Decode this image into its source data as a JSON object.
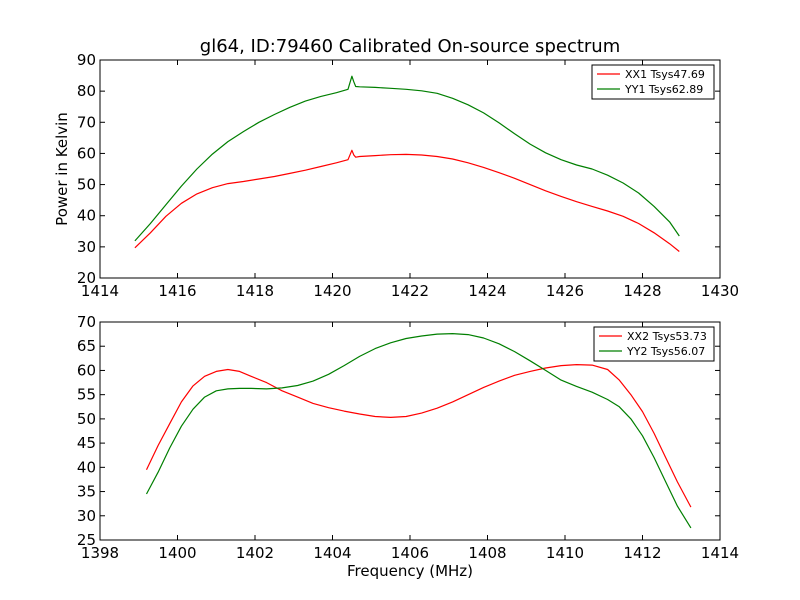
{
  "figure_title": "gl64, ID:79460 Calibrated On-source spectrum",
  "colors": {
    "red": "#ff0000",
    "green": "#007f00"
  },
  "chart_data": [
    {
      "type": "line",
      "title": "gl64, ID:79460 Calibrated On-source spectrum",
      "xlabel": "",
      "ylabel": "Power in Kelvin",
      "xlim": [
        1414,
        1430
      ],
      "ylim": [
        20,
        90
      ],
      "xticks": [
        1414,
        1416,
        1418,
        1420,
        1422,
        1424,
        1426,
        1428,
        1430
      ],
      "yticks": [
        20,
        30,
        40,
        50,
        60,
        70,
        80,
        90
      ],
      "grid": false,
      "legend": "top-right",
      "series": [
        {
          "name": "XX1 Tsys47.69",
          "color": "#ff0000",
          "x": [
            1414.9,
            1415.3,
            1415.7,
            1416.1,
            1416.5,
            1416.9,
            1417.3,
            1417.7,
            1418.1,
            1418.5,
            1418.9,
            1419.3,
            1419.7,
            1420.1,
            1420.4,
            1420.5,
            1420.55,
            1420.6,
            1420.7,
            1421.1,
            1421.5,
            1421.9,
            1422.3,
            1422.7,
            1423.1,
            1423.5,
            1423.9,
            1424.3,
            1424.7,
            1425.1,
            1425.5,
            1425.9,
            1426.3,
            1426.7,
            1427.1,
            1427.5,
            1427.9,
            1428.3,
            1428.7,
            1428.95
          ],
          "y": [
            29.7,
            34.5,
            39.8,
            44.0,
            47.0,
            49.0,
            50.3,
            51.0,
            51.8,
            52.6,
            53.6,
            54.6,
            55.8,
            57.0,
            58.0,
            61.0,
            59.5,
            58.8,
            59.0,
            59.3,
            59.6,
            59.7,
            59.5,
            59.0,
            58.2,
            57.0,
            55.5,
            53.8,
            52.0,
            50.0,
            48.0,
            46.2,
            44.5,
            43.0,
            41.5,
            39.8,
            37.5,
            34.5,
            31.0,
            28.5
          ]
        },
        {
          "name": "YY1 Tsys62.89",
          "color": "#007f00",
          "x": [
            1414.9,
            1415.3,
            1415.7,
            1416.1,
            1416.5,
            1416.9,
            1417.3,
            1417.7,
            1418.1,
            1418.5,
            1418.9,
            1419.3,
            1419.7,
            1420.1,
            1420.4,
            1420.5,
            1420.55,
            1420.6,
            1420.7,
            1421.1,
            1421.5,
            1421.9,
            1422.3,
            1422.7,
            1423.1,
            1423.5,
            1423.9,
            1424.3,
            1424.7,
            1425.1,
            1425.5,
            1425.9,
            1426.3,
            1426.7,
            1427.1,
            1427.5,
            1427.9,
            1428.3,
            1428.7,
            1428.95
          ],
          "y": [
            31.9,
            37.5,
            43.5,
            49.5,
            55.0,
            59.8,
            63.8,
            67.0,
            70.0,
            72.5,
            74.8,
            76.8,
            78.3,
            79.5,
            80.6,
            84.8,
            83.0,
            81.5,
            81.4,
            81.2,
            80.9,
            80.6,
            80.1,
            79.3,
            77.7,
            75.6,
            73.0,
            69.8,
            66.3,
            63.0,
            60.2,
            58.0,
            56.3,
            55.0,
            53.0,
            50.5,
            47.3,
            43.0,
            38.0,
            33.5
          ]
        }
      ]
    },
    {
      "type": "line",
      "title": "",
      "xlabel": "Frequency (MHz)",
      "ylabel": "",
      "xlim": [
        1398,
        1414
      ],
      "ylim": [
        25,
        70
      ],
      "xticks": [
        1398,
        1400,
        1402,
        1404,
        1406,
        1408,
        1410,
        1412,
        1414
      ],
      "yticks": [
        25,
        30,
        35,
        40,
        45,
        50,
        55,
        60,
        65,
        70
      ],
      "grid": false,
      "legend": "top-right",
      "series": [
        {
          "name": "XX2 Tsys53.73",
          "color": "#ff0000",
          "x": [
            1399.2,
            1399.5,
            1399.8,
            1400.1,
            1400.4,
            1400.7,
            1401.0,
            1401.3,
            1401.6,
            1401.9,
            1402.3,
            1402.7,
            1403.1,
            1403.5,
            1403.9,
            1404.3,
            1404.7,
            1405.1,
            1405.5,
            1405.9,
            1406.3,
            1406.7,
            1407.1,
            1407.5,
            1407.9,
            1408.3,
            1408.7,
            1409.1,
            1409.5,
            1409.9,
            1410.3,
            1410.7,
            1411.1,
            1411.4,
            1411.7,
            1412.0,
            1412.3,
            1412.6,
            1412.9,
            1413.25
          ],
          "y": [
            39.5,
            44.5,
            49.0,
            53.5,
            56.8,
            58.8,
            59.8,
            60.2,
            59.8,
            58.8,
            57.5,
            55.8,
            54.5,
            53.2,
            52.3,
            51.6,
            51.0,
            50.5,
            50.3,
            50.5,
            51.2,
            52.2,
            53.5,
            55.0,
            56.5,
            57.8,
            59.0,
            59.8,
            60.5,
            61.0,
            61.2,
            61.1,
            60.2,
            58.0,
            55.0,
            51.5,
            47.0,
            42.0,
            37.0,
            31.8
          ]
        },
        {
          "name": "YY2 Tsys56.07",
          "color": "#007f00",
          "x": [
            1399.2,
            1399.5,
            1399.8,
            1400.1,
            1400.4,
            1400.7,
            1401.0,
            1401.3,
            1401.6,
            1401.9,
            1402.3,
            1402.7,
            1403.1,
            1403.5,
            1403.9,
            1404.3,
            1404.7,
            1405.1,
            1405.5,
            1405.9,
            1406.3,
            1406.7,
            1407.1,
            1407.5,
            1407.9,
            1408.3,
            1408.7,
            1409.1,
            1409.5,
            1409.9,
            1410.3,
            1410.7,
            1411.1,
            1411.4,
            1411.7,
            1412.0,
            1412.3,
            1412.6,
            1412.9,
            1413.25
          ],
          "y": [
            34.5,
            39.0,
            44.0,
            48.5,
            52.0,
            54.5,
            55.8,
            56.2,
            56.3,
            56.3,
            56.2,
            56.4,
            56.9,
            57.8,
            59.2,
            61.0,
            62.9,
            64.5,
            65.7,
            66.6,
            67.1,
            67.5,
            67.6,
            67.4,
            66.7,
            65.5,
            63.9,
            62.0,
            60.0,
            58.0,
            56.7,
            55.5,
            54.0,
            52.5,
            50.0,
            46.5,
            42.0,
            37.0,
            32.0,
            27.5
          ]
        }
      ]
    }
  ]
}
